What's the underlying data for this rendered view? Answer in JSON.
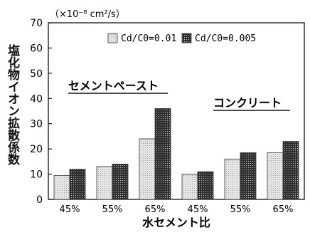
{
  "chart_data": {
    "type": "bar",
    "title": "",
    "xlabel": "水セメント比",
    "ylabel": "塩化物イオン拡散係数",
    "unit_label": "（×10⁻⁸ cm²/s）",
    "ylim": [
      0,
      70
    ],
    "yticks": [
      "0",
      "10",
      "20",
      "30",
      "40",
      "50",
      "60",
      "70"
    ],
    "categories": [
      "45%",
      "55%",
      "65%",
      "45%",
      "55%",
      "65%"
    ],
    "group_labels": [
      "セメントペースト",
      "コンクリート"
    ],
    "series": [
      {
        "name": "Cd/C0=0.01",
        "values": [
          9.5,
          13,
          24,
          10,
          16,
          18.5
        ]
      },
      {
        "name": "Cd/C0=0.005",
        "values": [
          12,
          14,
          36,
          11,
          18.5,
          23
        ]
      }
    ],
    "legend_position": "top",
    "grid": false,
    "colors": {
      "series1": "#d9d9d9",
      "series2": "#3a3a3a"
    }
  }
}
